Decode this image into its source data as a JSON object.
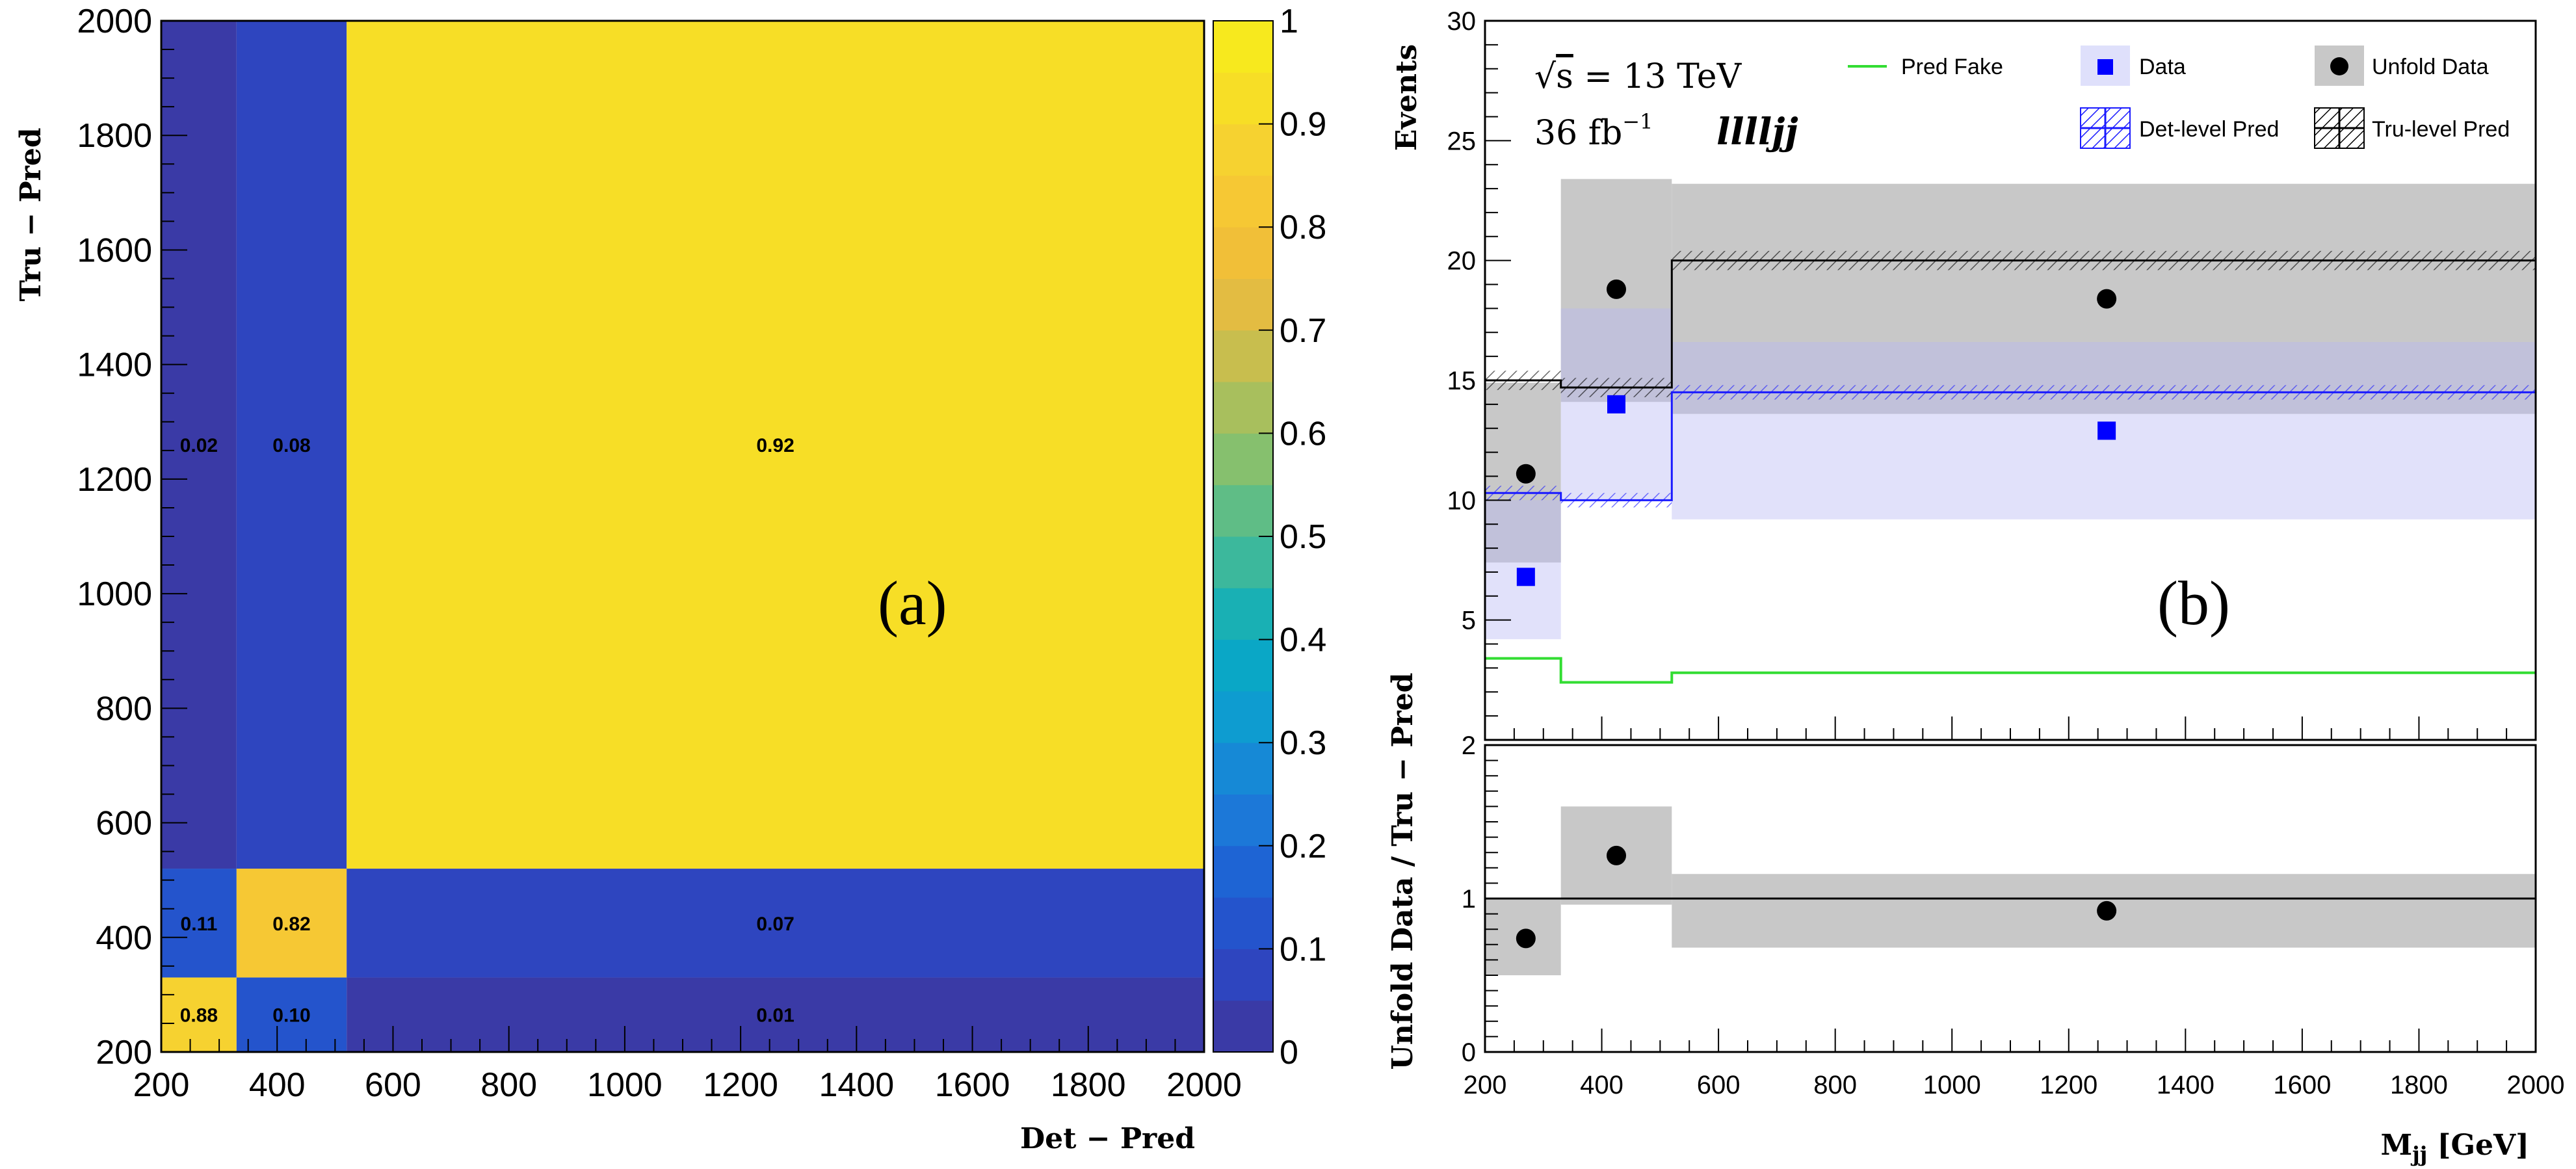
{
  "chart_data": [
    {
      "type": "heatmap",
      "panel_label": "(a)",
      "xlabel": "Det − Pred",
      "ylabel": "Tru − Pred",
      "xlim": [
        200,
        2000
      ],
      "ylim": [
        200,
        2000
      ],
      "x_ticks": [
        "200",
        "400",
        "600",
        "800",
        "1000",
        "1200",
        "1400",
        "1600",
        "1800",
        "2000"
      ],
      "y_ticks": [
        "200",
        "400",
        "600",
        "800",
        "1000",
        "1200",
        "1400",
        "1600",
        "1800",
        "2000"
      ],
      "bin_edges": [
        200,
        330,
        520,
        2000
      ],
      "cells": [
        {
          "x_bin": 0,
          "y_bin": 0,
          "value": 0.88,
          "label": "0.88"
        },
        {
          "x_bin": 1,
          "y_bin": 0,
          "value": 0.1,
          "label": "0.10"
        },
        {
          "x_bin": 2,
          "y_bin": 0,
          "value": 0.01,
          "label": "0.01"
        },
        {
          "x_bin": 0,
          "y_bin": 1,
          "value": 0.11,
          "label": "0.11"
        },
        {
          "x_bin": 1,
          "y_bin": 1,
          "value": 0.82,
          "label": "0.82"
        },
        {
          "x_bin": 2,
          "y_bin": 1,
          "value": 0.07,
          "label": "0.07"
        },
        {
          "x_bin": 0,
          "y_bin": 2,
          "value": 0.02,
          "label": "0.02"
        },
        {
          "x_bin": 1,
          "y_bin": 2,
          "value": 0.08,
          "label": "0.08"
        },
        {
          "x_bin": 2,
          "y_bin": 2,
          "value": 0.92,
          "label": "0.92"
        }
      ],
      "colorbar": {
        "range": [
          0,
          1
        ],
        "ticks": [
          "0",
          "0.1",
          "0.2",
          "0.3",
          "0.4",
          "0.5",
          "0.6",
          "0.7",
          "0.8",
          "0.9",
          "1"
        ],
        "colors": [
          "#3a3aa6",
          "#2e45bf",
          "#2454cc",
          "#1e64d4",
          "#1c78d8",
          "#1689d6",
          "#0e9cd0",
          "#0aa7c6",
          "#19b0b4",
          "#3cb89c",
          "#5fbd86",
          "#86c06e",
          "#a8bf5d",
          "#c8be4e",
          "#e3bc42",
          "#f1bf38",
          "#f6c834",
          "#f6d230",
          "#f7de26",
          "#f7e91e"
        ]
      },
      "grid": false
    },
    {
      "type": "step",
      "panel_label": "(b)",
      "xlabel": "M",
      "xlabel_sub": "jj",
      "xlabel_unit": " [GeV]",
      "ylabel": "Events",
      "ratio_ylabel": "Unfold Data / Tru − Pred",
      "xlim": [
        200,
        2000
      ],
      "ylim": [
        0,
        30
      ],
      "ratio_ylim": [
        0,
        2
      ],
      "x_ticks": [
        "200",
        "400",
        "600",
        "800",
        "1000",
        "1200",
        "1400",
        "1600",
        "1800",
        "2000"
      ],
      "y_ticks": [
        "5",
        "10",
        "15",
        "20",
        "25",
        "30"
      ],
      "ratio_y_ticks": [
        "0",
        "1",
        "2"
      ],
      "bin_edges": [
        200,
        330,
        520,
        2000
      ],
      "annotations": {
        "energy_prefix": "√",
        "energy_s": "s",
        "energy": " = 13 TeV",
        "lumi_value": "36 fb",
        "lumi_exp": "−1",
        "channel": "llll",
        "channel_suffix": "jj"
      },
      "legend": [
        {
          "name": "Pred Fake",
          "color": "#33dd33"
        },
        {
          "name": "Data",
          "color": "#0000ff"
        },
        {
          "name": "Unfold Data",
          "color": "#000000"
        },
        {
          "name": "Det-level Pred",
          "color": "#1a1aff"
        },
        {
          "name": "Tru-level Pred",
          "color": "#000000"
        }
      ],
      "series": [
        {
          "name": "Tru-level Pred",
          "values": [
            15.0,
            14.7,
            20.0
          ],
          "band": [
            [
              0.4,
              0.4
            ],
            [
              0.4,
              0.4
            ],
            [
              0.4,
              0.4
            ]
          ]
        },
        {
          "name": "Det-level Pred",
          "values": [
            10.3,
            10.0,
            14.5
          ],
          "band": [
            [
              0.3,
              0.3
            ],
            [
              0.3,
              0.3
            ],
            [
              0.3,
              0.3
            ]
          ]
        },
        {
          "name": "Pred Fake",
          "values": [
            3.4,
            2.4,
            2.8
          ]
        },
        {
          "name": "Data",
          "x": [
            270,
            425,
            1265
          ],
          "values": [
            6.8,
            14.0,
            12.9
          ],
          "err_low": [
            4.2,
            10.0,
            9.2
          ],
          "err_high": [
            10.0,
            18.0,
            16.6
          ]
        },
        {
          "name": "Unfold Data",
          "x": [
            270,
            425,
            1265
          ],
          "values": [
            11.1,
            18.8,
            18.4
          ],
          "err_low": [
            7.4,
            14.1,
            13.6
          ],
          "err_high": [
            14.9,
            23.4,
            23.2
          ]
        }
      ],
      "ratio": {
        "name": "Unfold Data / Tru − Pred",
        "x": [
          270,
          425,
          1265
        ],
        "values": [
          0.74,
          1.28,
          0.92
        ],
        "band_low": [
          0.5,
          0.96,
          0.68
        ],
        "band_high": [
          1.0,
          1.6,
          1.16
        ],
        "reference": 1.0
      }
    }
  ]
}
